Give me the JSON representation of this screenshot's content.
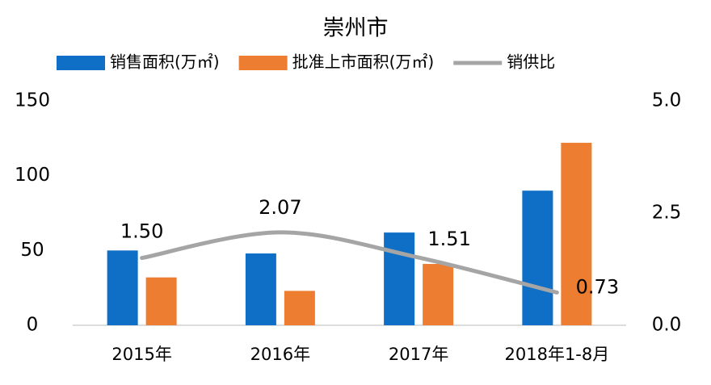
{
  "chart_data": {
    "type": "bar-line",
    "title": "崇州市",
    "categories": [
      "2015年",
      "2016年",
      "2017年",
      "2018年1-8月"
    ],
    "series": [
      {
        "name": "销售面积(万㎡)",
        "color": "#0f6fc6",
        "values": [
          50,
          48,
          62,
          90
        ]
      },
      {
        "name": "批准上市面积(万㎡)",
        "color": "#ed7d31",
        "values": [
          32,
          23,
          41,
          122
        ]
      },
      {
        "name": "销供比",
        "color": "#a5a5a5",
        "type": "line",
        "axis": "y2",
        "values": [
          1.5,
          2.07,
          1.51,
          0.73
        ],
        "value_labels": [
          "1.50",
          "2.07",
          "1.51",
          "0.73"
        ]
      }
    ],
    "ylim": [
      0,
      150
    ],
    "yticks": [
      0,
      50,
      100,
      150
    ],
    "y2lim": [
      0,
      5
    ],
    "y2ticks": [
      {
        "value": 0,
        "label": "0.0"
      },
      {
        "value": 2.5,
        "label": "2.5"
      },
      {
        "value": 5,
        "label": "5.0"
      }
    ],
    "grid": false
  }
}
